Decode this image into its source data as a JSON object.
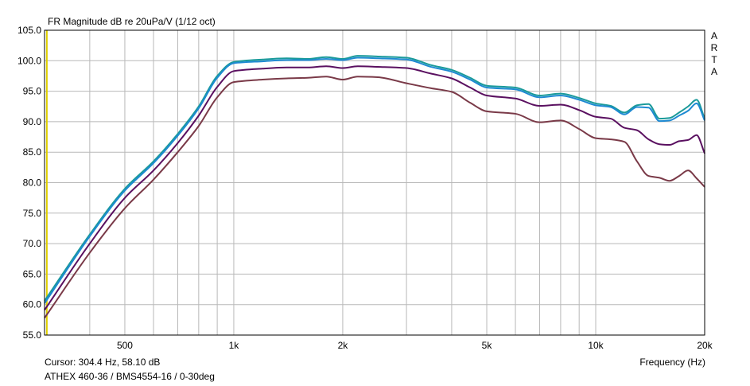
{
  "app": {
    "watermark": [
      "A",
      "R",
      "T",
      "A"
    ]
  },
  "chart_data": {
    "type": "line",
    "title": "FR Magnitude dB re 20uPa/V (1/12 oct)",
    "xlabel": "Frequency (Hz)",
    "ylabel": "",
    "x_scale": "log",
    "xlim": [
      300,
      20000
    ],
    "ylim": [
      55,
      105
    ],
    "x_tick_labels": [
      {
        "value": 500,
        "label": "500"
      },
      {
        "value": 1000,
        "label": "1k"
      },
      {
        "value": 2000,
        "label": "2k"
      },
      {
        "value": 5000,
        "label": "5k"
      },
      {
        "value": 10000,
        "label": "10k"
      },
      {
        "value": 20000,
        "label": "20k"
      }
    ],
    "y_ticks": [
      "55.0",
      "60.0",
      "65.0",
      "70.0",
      "75.0",
      "80.0",
      "85.0",
      "90.0",
      "95.0",
      "100.0",
      "105.0"
    ],
    "grid": true,
    "cursor": {
      "frequency": 304.4,
      "label": "Cursor: 304.4 Hz, 58.10 dB"
    },
    "footer": "ATHEX 460-36 / BMS4554-16 / 0-30deg",
    "series": [
      {
        "color": "#1a9a9a",
        "points": [
          [
            300,
            60.6
          ],
          [
            400,
            71.5
          ],
          [
            500,
            79
          ],
          [
            600,
            83.5
          ],
          [
            700,
            88
          ],
          [
            800,
            92.5
          ],
          [
            900,
            97.5
          ],
          [
            1000,
            99.8
          ],
          [
            1200,
            100.2
          ],
          [
            1400,
            100.4
          ],
          [
            1600,
            100.3
          ],
          [
            1800,
            100.6
          ],
          [
            2000,
            100.3
          ],
          [
            2200,
            100.8
          ],
          [
            2500,
            100.7
          ],
          [
            3000,
            100.5
          ],
          [
            3500,
            99.3
          ],
          [
            4000,
            98.5
          ],
          [
            4500,
            97.2
          ],
          [
            5000,
            95.9
          ],
          [
            6000,
            95.6
          ],
          [
            7000,
            94.3
          ],
          [
            8000,
            94.6
          ],
          [
            9000,
            93.9
          ],
          [
            10000,
            93
          ],
          [
            11000,
            92.6
          ],
          [
            12000,
            91.5
          ],
          [
            13000,
            92.7
          ],
          [
            14000,
            92.9
          ],
          [
            15000,
            90.5
          ],
          [
            16000,
            90.6
          ],
          [
            17000,
            91.5
          ],
          [
            18000,
            92.5
          ],
          [
            19000,
            93.6
          ],
          [
            20000,
            90.5
          ]
        ]
      },
      {
        "color": "#1e8ad2",
        "points": [
          [
            300,
            60.2
          ],
          [
            400,
            71.2
          ],
          [
            500,
            78.7
          ],
          [
            600,
            83.2
          ],
          [
            700,
            87.7
          ],
          [
            800,
            92.2
          ],
          [
            900,
            97.2
          ],
          [
            1000,
            99.6
          ],
          [
            1200,
            99.9
          ],
          [
            1400,
            100.1
          ],
          [
            1600,
            100.1
          ],
          [
            1800,
            100.3
          ],
          [
            2000,
            100.1
          ],
          [
            2200,
            100.5
          ],
          [
            2500,
            100.4
          ],
          [
            3000,
            100.2
          ],
          [
            3500,
            99
          ],
          [
            4000,
            98.2
          ],
          [
            4500,
            96.9
          ],
          [
            5000,
            95.6
          ],
          [
            6000,
            95.3
          ],
          [
            7000,
            94
          ],
          [
            8000,
            94.3
          ],
          [
            9000,
            93.6
          ],
          [
            10000,
            92.7
          ],
          [
            11000,
            92.4
          ],
          [
            12000,
            91.2
          ],
          [
            13000,
            92.4
          ],
          [
            14000,
            92.3
          ],
          [
            15000,
            90.1
          ],
          [
            16000,
            90.2
          ],
          [
            17000,
            91
          ],
          [
            18000,
            91.8
          ],
          [
            19000,
            93
          ],
          [
            20000,
            90.2
          ]
        ]
      },
      {
        "color": "#5a1060",
        "points": [
          [
            300,
            59.1
          ],
          [
            400,
            70
          ],
          [
            500,
            77.5
          ],
          [
            600,
            82
          ],
          [
            700,
            86.5
          ],
          [
            800,
            91
          ],
          [
            900,
            95.7
          ],
          [
            1000,
            98.3
          ],
          [
            1200,
            98.7
          ],
          [
            1400,
            98.9
          ],
          [
            1600,
            98.9
          ],
          [
            1800,
            99.1
          ],
          [
            2000,
            98.8
          ],
          [
            2200,
            99.1
          ],
          [
            2500,
            99
          ],
          [
            3000,
            98.8
          ],
          [
            3500,
            97.9
          ],
          [
            4000,
            97.1
          ],
          [
            4500,
            95.6
          ],
          [
            5000,
            94.3
          ],
          [
            6000,
            93.8
          ],
          [
            7000,
            92.6
          ],
          [
            8000,
            92.8
          ],
          [
            9000,
            91.9
          ],
          [
            10000,
            90.8
          ],
          [
            11000,
            90.5
          ],
          [
            12000,
            89
          ],
          [
            13000,
            88.6
          ],
          [
            14000,
            87.1
          ],
          [
            15000,
            86.3
          ],
          [
            16000,
            86.2
          ],
          [
            17000,
            86.8
          ],
          [
            18000,
            87
          ],
          [
            19000,
            87.8
          ],
          [
            20000,
            84.8
          ]
        ]
      },
      {
        "color": "#7a3a48",
        "points": [
          [
            300,
            57.8
          ],
          [
            400,
            68.5
          ],
          [
            500,
            75.8
          ],
          [
            600,
            80.5
          ],
          [
            700,
            85
          ],
          [
            800,
            89.3
          ],
          [
            900,
            94
          ],
          [
            1000,
            96.5
          ],
          [
            1200,
            96.9
          ],
          [
            1400,
            97.1
          ],
          [
            1600,
            97.2
          ],
          [
            1800,
            97.4
          ],
          [
            2000,
            96.9
          ],
          [
            2200,
            97.4
          ],
          [
            2500,
            97.3
          ],
          [
            3000,
            96.3
          ],
          [
            3500,
            95.5
          ],
          [
            4000,
            94.9
          ],
          [
            4500,
            93.1
          ],
          [
            5000,
            91.7
          ],
          [
            6000,
            91.3
          ],
          [
            7000,
            89.9
          ],
          [
            8000,
            90.2
          ],
          [
            9000,
            88.8
          ],
          [
            10000,
            87.3
          ],
          [
            11000,
            87.1
          ],
          [
            12000,
            86.7
          ],
          [
            13000,
            83.5
          ],
          [
            14000,
            81.1
          ],
          [
            15000,
            80.8
          ],
          [
            16000,
            80.3
          ],
          [
            17000,
            81.1
          ],
          [
            18000,
            82
          ],
          [
            19000,
            80.7
          ],
          [
            20000,
            79.3
          ]
        ]
      }
    ]
  }
}
